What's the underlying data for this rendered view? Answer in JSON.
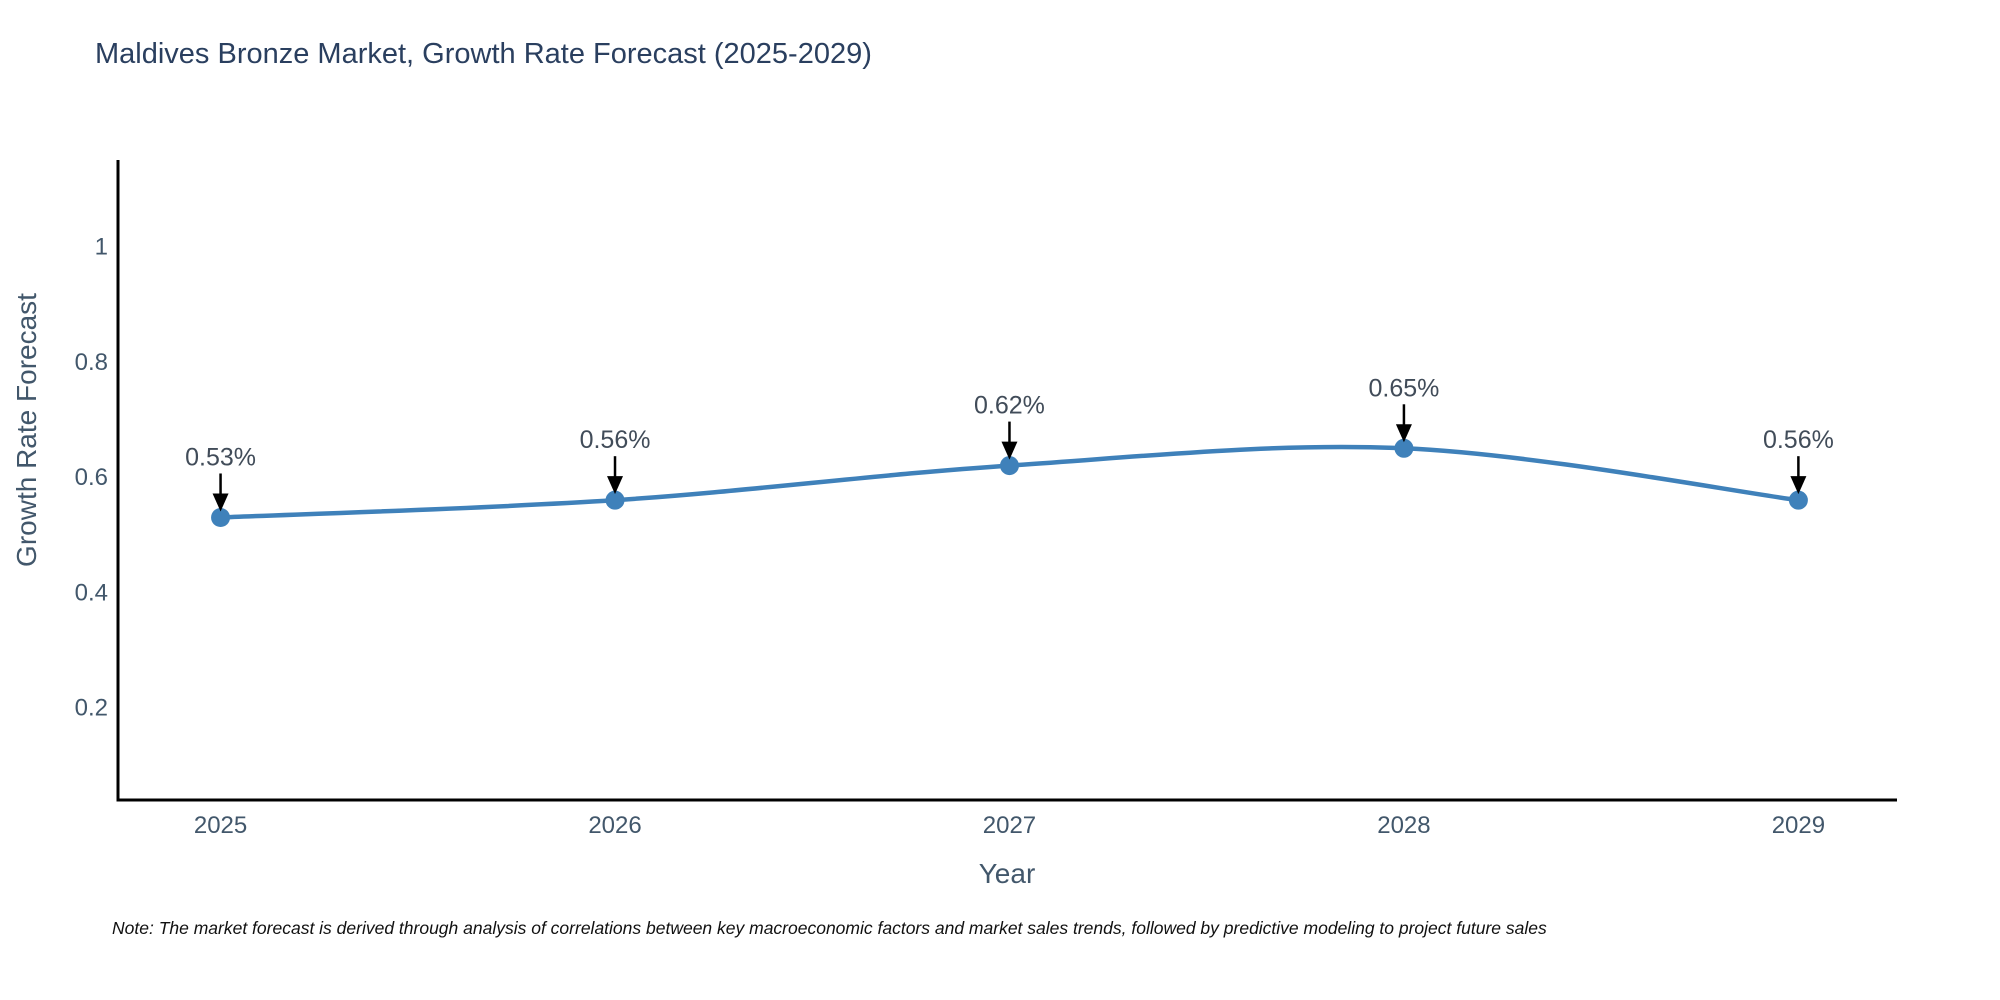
{
  "header": {
    "title": "Maldives Bronze Market, Growth Rate Forecast (2025-2029)"
  },
  "chart_data": {
    "type": "line",
    "title": "Maldives Bronze Market, Growth Rate Forecast (2025-2029)",
    "x": [
      2025,
      2026,
      2027,
      2028,
      2029
    ],
    "series": [
      {
        "name": "Growth Rate Forecast",
        "values": [
          0.53,
          0.56,
          0.62,
          0.65,
          0.56
        ]
      }
    ],
    "point_labels": [
      "0.53%",
      "0.56%",
      "0.62%",
      "0.65%",
      "0.56%"
    ],
    "xlabel": "Year",
    "ylabel": "Growth Rate Forecast",
    "xtick_labels": [
      "2025",
      "2026",
      "2027",
      "2028",
      "2029"
    ],
    "yticks": [
      1,
      0.8,
      0.6,
      0.4,
      0.2
    ],
    "ytick_labels": [
      "1",
      "0.8",
      "0.6",
      "0.4",
      "0.2"
    ],
    "xlim": [
      2024.74,
      2029.25
    ],
    "ylim": [
      0.04,
      1.15
    ],
    "grid": false,
    "legend_position": "none",
    "line_shape": "spline",
    "line_color": "#3f81ba",
    "marker_color": "#3f81ba",
    "annotation_arrow_color": "#000000"
  },
  "colors": {
    "title": "#2a3f5f",
    "axis": "#42576b",
    "tick": "#42576b",
    "annotation": "#414c59",
    "spine": "#000000"
  },
  "note": {
    "text": "Note: The market forecast is derived through analysis of correlations between key macroeconomic factors and market sales trends, followed by predictive modeling to project future sales"
  }
}
